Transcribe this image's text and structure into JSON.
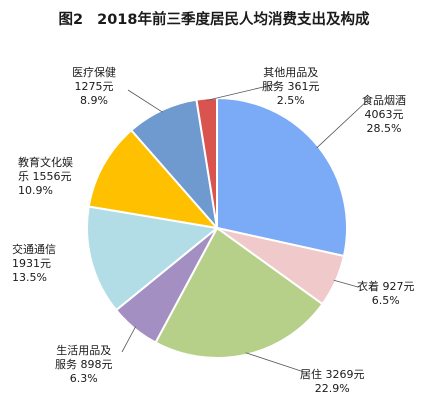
{
  "title": {
    "figure_no": "图2",
    "text": "2018年前三季度居民人均消费支出及构成"
  },
  "chart_data": {
    "type": "pie",
    "title": "2018年前三季度居民人均消费支出及构成",
    "unit": "元",
    "start_angle_deg": 0,
    "direction": "clockwise",
    "slices": [
      {
        "name": "食品烟酒",
        "lines": [
          "食品烟酒",
          "4063元",
          "28.5%"
        ],
        "value": 4063,
        "percent": 28.5,
        "color": "#7BAAF7"
      },
      {
        "name": "衣着",
        "lines": [
          "衣着 927元",
          "6.5%"
        ],
        "value": 927,
        "percent": 6.5,
        "color": "#F0CACA"
      },
      {
        "name": "居住",
        "lines": [
          "居住 3269元",
          "22.9%"
        ],
        "value": 3269,
        "percent": 22.9,
        "color": "#B6D08A"
      },
      {
        "name": "生活用品及服务",
        "lines": [
          "生活用品及",
          "服务 898元",
          "6.3%"
        ],
        "value": 898,
        "percent": 6.3,
        "color": "#A48FC2"
      },
      {
        "name": "交通通信",
        "lines": [
          "交通通信",
          "1931元",
          "13.5%"
        ],
        "value": 1931,
        "percent": 13.5,
        "color": "#B3DDE6"
      },
      {
        "name": "教育文化娱乐",
        "lines": [
          "教育文化娱",
          "乐 1556元",
          "10.9%"
        ],
        "value": 1556,
        "percent": 10.9,
        "color": "#FFC000"
      },
      {
        "name": "医疗保健",
        "lines": [
          "医疗保健",
          "1275元",
          "8.9%"
        ],
        "value": 1275,
        "percent": 8.9,
        "color": "#6F9AD0"
      },
      {
        "name": "其他用品及服务",
        "lines": [
          "其他用品及",
          "服务 361元",
          "2.5%"
        ],
        "value": 361,
        "percent": 2.5,
        "color": "#D9534F"
      }
    ]
  }
}
